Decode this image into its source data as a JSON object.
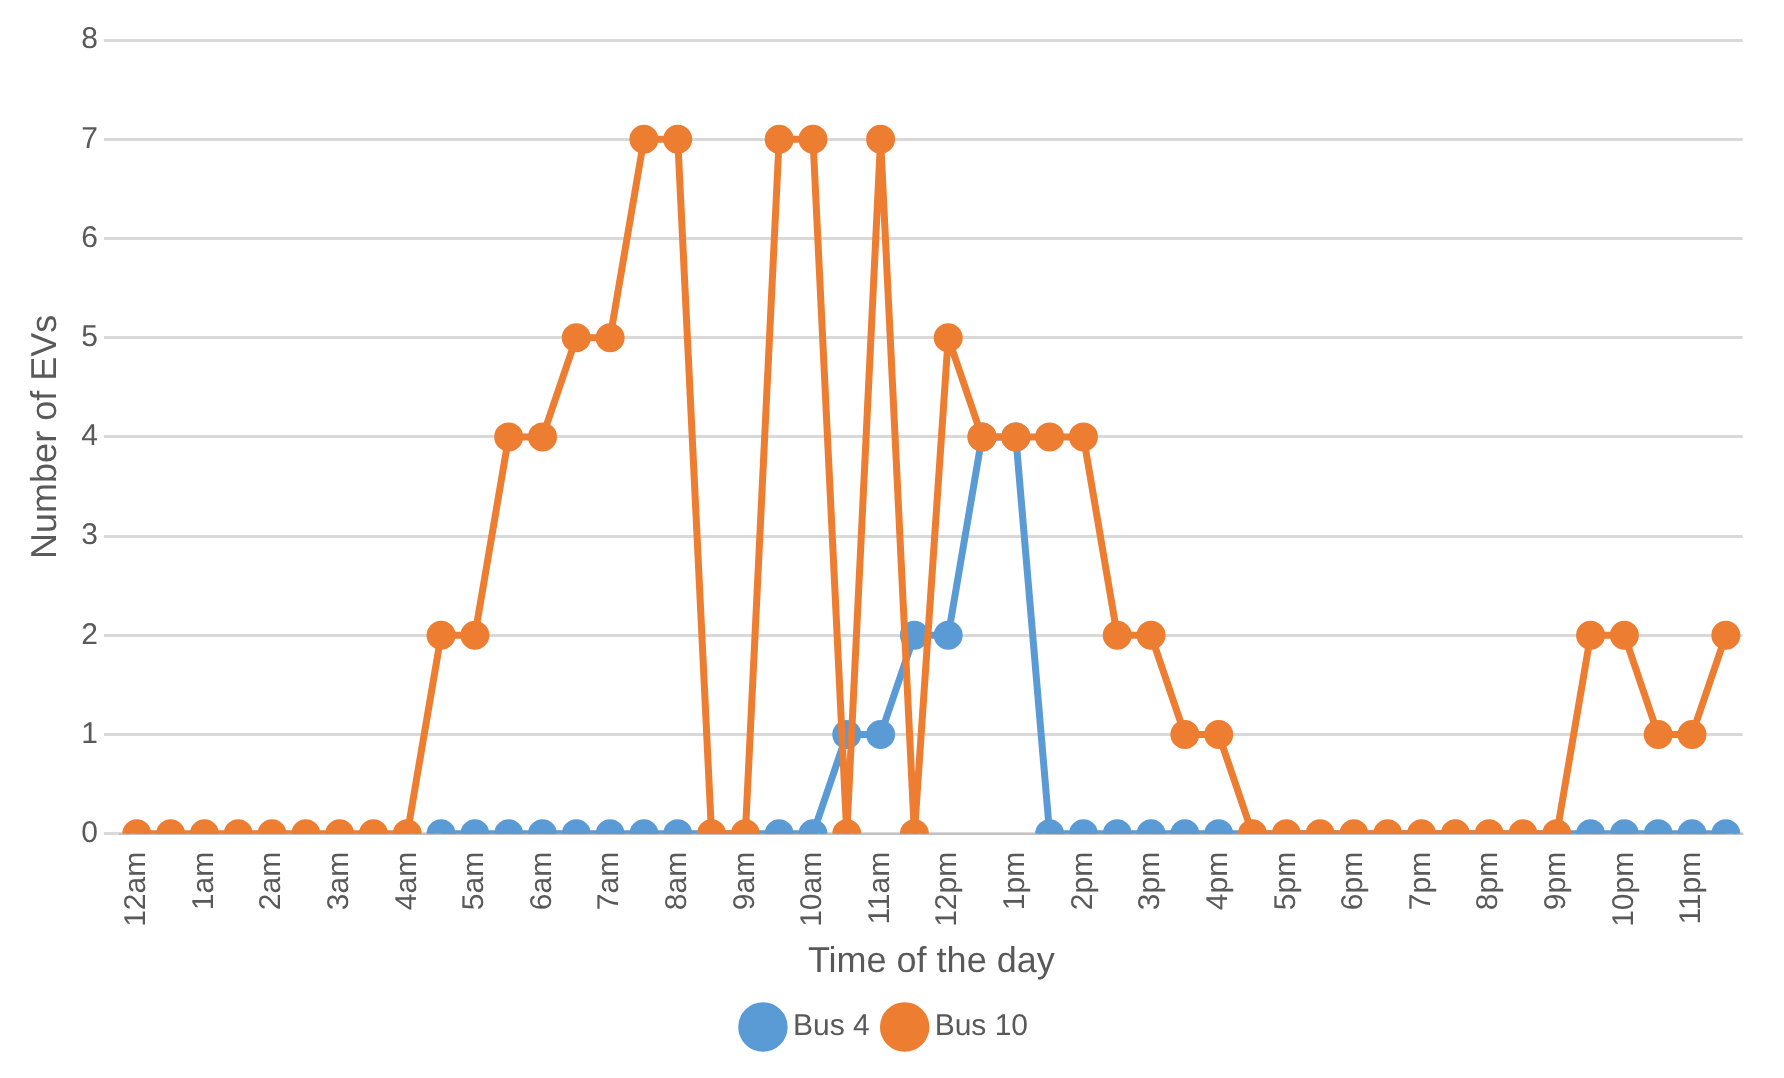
{
  "chart_data": {
    "type": "line",
    "xlabel": "Time of the day",
    "ylabel": "Number of EVs",
    "categories": [
      "12am",
      null,
      "1am",
      null,
      "2am",
      null,
      "3am",
      null,
      "4am",
      null,
      "5am",
      null,
      "6am",
      null,
      "7am",
      null,
      "8am",
      null,
      "9am",
      null,
      "10am",
      null,
      "11am",
      null,
      "12pm",
      null,
      "1pm",
      null,
      "2pm",
      null,
      "3pm",
      null,
      "4pm",
      null,
      "5pm",
      null,
      "6pm",
      null,
      "7pm",
      null,
      "8pm",
      null,
      "9pm",
      null,
      "10pm",
      null,
      "11pm",
      null
    ],
    "series": [
      {
        "name": "Bus 4",
        "color": "#5b9bd5",
        "values": [
          null,
          null,
          null,
          null,
          null,
          null,
          null,
          null,
          null,
          0,
          0,
          0,
          0,
          0,
          0,
          0,
          0,
          null,
          null,
          0,
          0,
          1,
          1,
          2,
          2,
          4,
          4,
          0,
          0,
          0,
          0,
          0,
          0,
          null,
          null,
          null,
          null,
          null,
          null,
          null,
          null,
          null,
          null,
          0,
          0,
          0,
          0,
          0
        ]
      },
      {
        "name": "Bus 10",
        "color": "#ed7d31",
        "values": [
          0,
          0,
          0,
          0,
          0,
          0,
          0,
          0,
          0,
          2,
          2,
          4,
          4,
          5,
          5,
          7,
          7,
          0,
          0,
          7,
          7,
          0,
          7,
          0,
          5,
          4,
          4,
          4,
          4,
          2,
          2,
          1,
          1,
          0,
          0,
          0,
          0,
          0,
          0,
          0,
          0,
          0,
          0,
          2,
          2,
          1,
          1,
          2
        ]
      }
    ],
    "ylim": [
      0,
      8
    ],
    "yticks": [
      0,
      1,
      2,
      3,
      4,
      5,
      6,
      7,
      8
    ],
    "grid": "y",
    "legend": "bottom",
    "marker": "circle",
    "line_style": "solid"
  }
}
